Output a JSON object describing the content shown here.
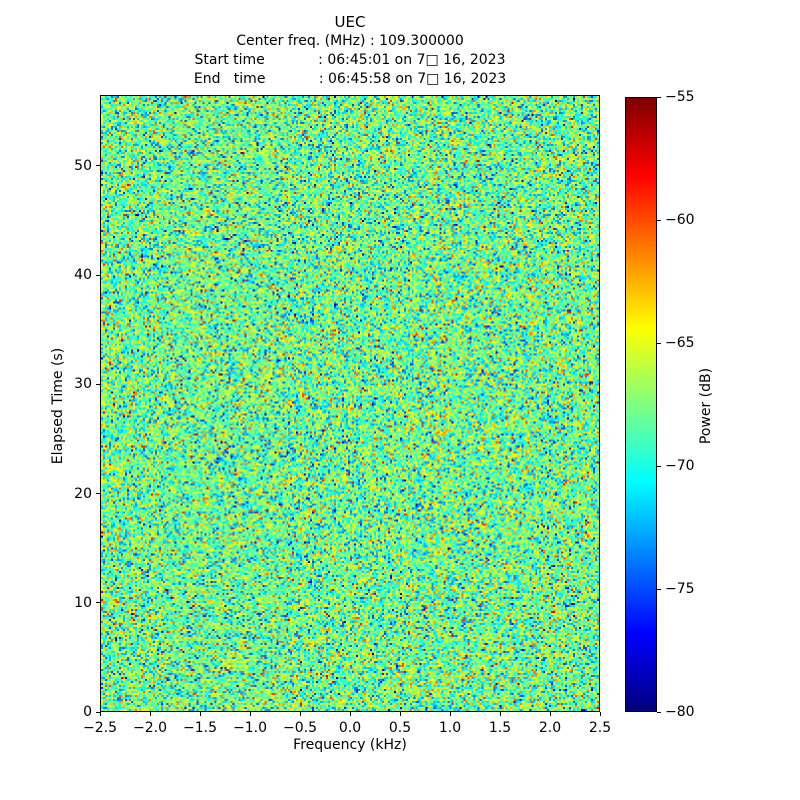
{
  "figure": {
    "title": "UEC",
    "subtitle_lines": [
      "Center freq. (MHz) : 109.300000",
      "Start time            : 06:45:01 on 7□ 16, 2023",
      "End   time            : 06:45:58 on 7□ 16, 2023"
    ]
  },
  "chart_data": {
    "type": "heatmap",
    "title": "UEC",
    "center_freq_mhz": "109.300000",
    "start_time": "06:45:01 on 7□ 16, 2023",
    "end_time": "06:45:58 on 7□ 16, 2023",
    "xlabel": "Frequency (kHz)",
    "ylabel": "Elapsed Time (s)",
    "xlim": [
      -2.5,
      2.5
    ],
    "ylim": [
      0,
      56.5
    ],
    "x_ticks": [
      -2.5,
      -2.0,
      -1.5,
      -1.0,
      -0.5,
      0.0,
      0.5,
      1.0,
      1.5,
      2.0,
      2.5
    ],
    "x_tick_labels": [
      "−2.5",
      "−2.0",
      "−1.5",
      "−1.0",
      "−0.5",
      "0.0",
      "0.5",
      "1.0",
      "1.5",
      "2.0",
      "2.5"
    ],
    "y_ticks": [
      0,
      10,
      20,
      30,
      40,
      50
    ],
    "y_tick_labels": [
      "0",
      "10",
      "20",
      "30",
      "40",
      "50"
    ],
    "grid": false,
    "colorbar": {
      "label": "Power (dB)",
      "vmin": -80,
      "vmax": -55,
      "ticks": [
        -55,
        -60,
        -65,
        -70,
        -75,
        -80
      ],
      "tick_labels": [
        "−55",
        "−60",
        "−65",
        "−70",
        "−75",
        "−80"
      ],
      "colormap": "jet",
      "position": "right"
    },
    "content": "broadband random noise spectrogram, no coherent signal visible; mean power near -68 dB",
    "noise": {
      "mean_db": -68,
      "std_db": 3.4,
      "seed": 20230716,
      "cols": 250,
      "rows": 308
    }
  }
}
